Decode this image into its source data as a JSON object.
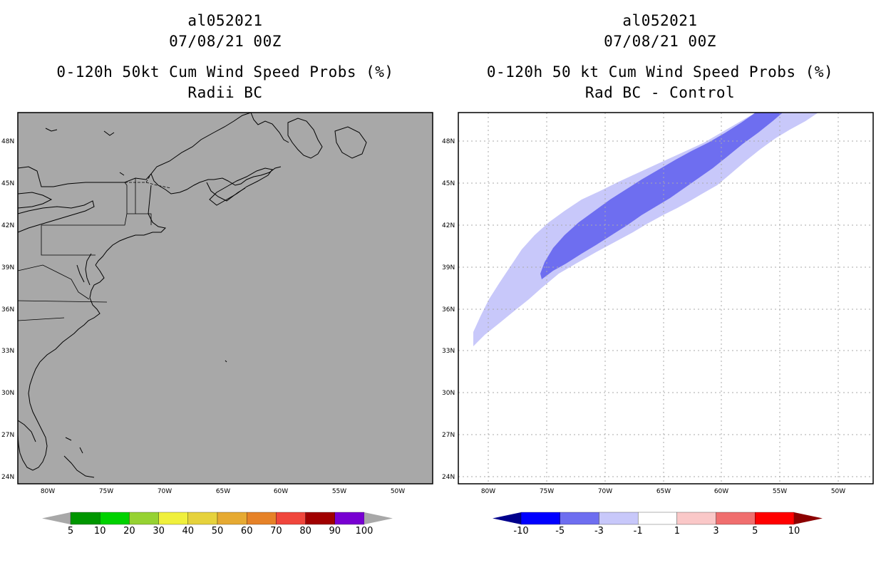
{
  "left_panel": {
    "title_lines": [
      "al052021",
      "07/08/21 00Z",
      "0-120h 50kt Cum Wind Speed Probs (%)",
      "Radii BC"
    ],
    "field_color": "#a8a8a8",
    "colorbar": {
      "colors": [
        "#009600",
        "#00d200",
        "#96d232",
        "#f0f03c",
        "#e6d23c",
        "#e6aa32",
        "#e68228",
        "#f0463c",
        "#a00000",
        "#7800d2"
      ],
      "end_color": "#a8a8a8",
      "labels": [
        "5",
        "10",
        "20",
        "30",
        "40",
        "50",
        "60",
        "70",
        "80",
        "90",
        "100"
      ]
    }
  },
  "right_panel": {
    "title_lines": [
      "al052021",
      "07/08/21 00Z",
      "0-120h 50 kt Cum Wind Speed Probs (%)",
      "Rad BC - Control"
    ],
    "colorbar": {
      "colors": [
        "#0000ff",
        "#6e6ef0",
        "#c8c8fa",
        "#ffffff",
        "#fac8c8",
        "#f06e6e",
        "#ff0000"
      ],
      "end_colors": [
        "#00008c",
        "#8c0000"
      ],
      "labels": [
        "-10",
        "-5",
        "-3",
        "-1",
        "1",
        "3",
        "5",
        "10"
      ]
    },
    "difference_bands": [
      {
        "name": "outer",
        "value": "-1 to -3",
        "color": "#c8c8fa"
      },
      {
        "name": "core",
        "value": "-3 to -5",
        "color": "#6e6ef0"
      }
    ]
  },
  "map": {
    "lat_labels": [
      "48N",
      "45N",
      "42N",
      "39N",
      "36N",
      "33N",
      "30N",
      "27N",
      "24N"
    ],
    "lon_labels": [
      "80W",
      "75W",
      "70W",
      "65W",
      "60W",
      "55W",
      "50W"
    ]
  }
}
